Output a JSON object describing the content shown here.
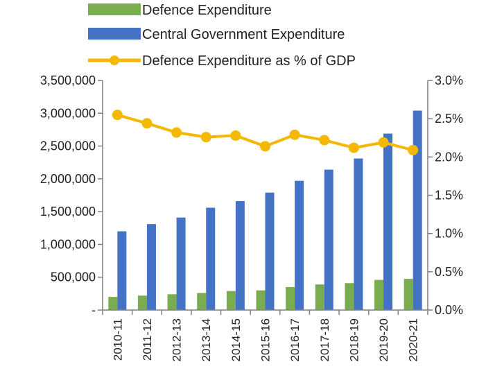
{
  "colors": {
    "defence": "#7aad4f",
    "central": "#4472c4",
    "gdp_line": "#f5b800",
    "axis": "#7f7f7f"
  },
  "legend": [
    {
      "key": "defence",
      "label": "Defence Expenditure",
      "marker": "bar"
    },
    {
      "key": "central",
      "label": "Central Government Expenditure",
      "marker": "bar"
    },
    {
      "key": "gdp",
      "label": "Defence Expenditure as % of GDP",
      "marker": "line-dot"
    }
  ],
  "chart_data": {
    "type": "bar",
    "categories": [
      "2010-11",
      "2011-12",
      "2012-13",
      "2013-14",
      "2014-15",
      "2015-16",
      "2016-17",
      "2017-18",
      "2018-19",
      "2019-20",
      "2020-21"
    ],
    "series": [
      {
        "name": "Defence Expenditure",
        "axis": "left",
        "type": "bar",
        "values": [
          200000,
          220000,
          240000,
          260000,
          290000,
          300000,
          350000,
          390000,
          410000,
          460000,
          475000
        ]
      },
      {
        "name": "Central Government Expenditure",
        "axis": "left",
        "type": "bar",
        "values": [
          1200000,
          1310000,
          1410000,
          1560000,
          1660000,
          1790000,
          1970000,
          2140000,
          2310000,
          2690000,
          3040000
        ]
      },
      {
        "name": "Defence Expenditure as % of GDP",
        "axis": "right",
        "type": "line",
        "values": [
          2.55,
          2.44,
          2.32,
          2.26,
          2.28,
          2.14,
          2.29,
          2.22,
          2.12,
          2.19,
          2.09
        ]
      }
    ],
    "y_left": {
      "min": 0,
      "max": 3500000,
      "ticks": [
        0,
        500000,
        1000000,
        1500000,
        2000000,
        2500000,
        3000000,
        3500000
      ],
      "tick_labels": [
        "-",
        "500,000",
        "1,000,000",
        "1,500,000",
        "2,000,000",
        "2,500,000",
        "3,000,000",
        "3,500,000"
      ]
    },
    "y_right": {
      "min": 0,
      "max": 3.0,
      "ticks": [
        0,
        0.5,
        1.0,
        1.5,
        2.0,
        2.5,
        3.0
      ],
      "tick_labels": [
        "0.0%",
        "0.5%",
        "1.0%",
        "1.5%",
        "2.0%",
        "2.5%",
        "3.0%"
      ]
    },
    "grid": false,
    "legend_position": "top-left"
  }
}
